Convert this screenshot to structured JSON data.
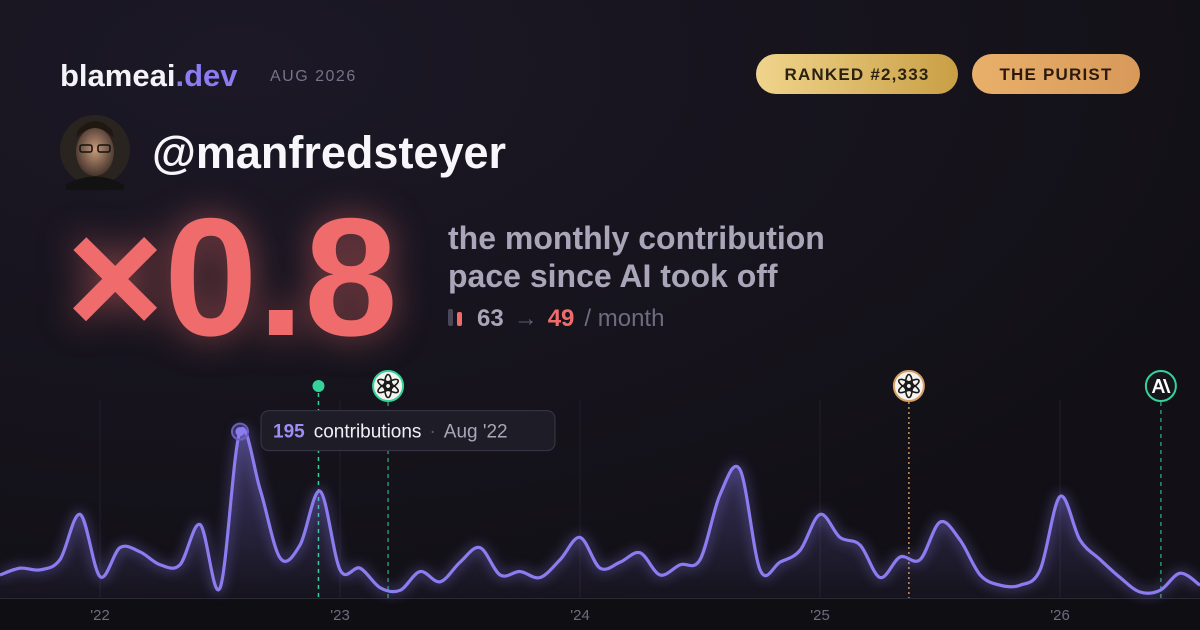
{
  "header": {
    "brand": "blameai",
    "brand_suffix": ".dev",
    "date": "AUG 2026",
    "badges": [
      "RANKED #2,333",
      "THE PURIST"
    ],
    "handle": "@manfredsteyer"
  },
  "headline": {
    "multiplier": "×0.8",
    "description": [
      "the monthly contribution",
      "pace since AI took off"
    ],
    "before": "63",
    "arrow": "→",
    "after": "49",
    "unit": "/ month"
  },
  "chart_data": {
    "type": "area",
    "x": [
      2021.583,
      2021.667,
      2021.75,
      2021.833,
      2021.917,
      2022,
      2022.083,
      2022.167,
      2022.25,
      2022.333,
      2022.417,
      2022.5,
      2022.583,
      2022.667,
      2022.75,
      2022.833,
      2022.917,
      2023,
      2023.083,
      2023.167,
      2023.25,
      2023.333,
      2023.417,
      2023.5,
      2023.583,
      2023.667,
      2023.75,
      2023.833,
      2023.917,
      2024,
      2024.083,
      2024.167,
      2024.25,
      2024.333,
      2024.417,
      2024.5,
      2024.583,
      2024.667,
      2024.75,
      2024.833,
      2024.917,
      2025,
      2025.083,
      2025.167,
      2025.25,
      2025.333,
      2025.417,
      2025.5,
      2025.583,
      2025.667,
      2025.75,
      2025.833,
      2025.917,
      2026,
      2026.083,
      2026.167,
      2026.25,
      2026.333,
      2026.417,
      2026.5,
      2026.583
    ],
    "series": [
      {
        "color": "#8b7cf0",
        "values": [
          27,
          35,
          33,
          45,
          98,
          25,
          59,
          54,
          39,
          39,
          86,
          12,
          195,
          127,
          47,
          62,
          125,
          33,
          35,
          12,
          9,
          31,
          19,
          42,
          59,
          27,
          31,
          24,
          45,
          71,
          35,
          42,
          53,
          27,
          39,
          45,
          121,
          150,
          33,
          42,
          56,
          98,
          71,
          62,
          24,
          48,
          45,
          89,
          68,
          27,
          15,
          15,
          33,
          119,
          68,
          45,
          24,
          7,
          9,
          29,
          15
        ]
      }
    ],
    "xlim": [
      2021.583,
      2026.583
    ],
    "ylim": [
      0,
      232
    ],
    "xticks": [
      {
        "value": 2022,
        "label": "'22"
      },
      {
        "value": 2023,
        "label": "'23"
      },
      {
        "value": 2024,
        "label": "'24"
      },
      {
        "value": 2025,
        "label": "'25"
      },
      {
        "value": 2026,
        "label": "'26"
      }
    ],
    "grid": true,
    "markers": [
      {
        "x": 2022.91,
        "color": "#34d399"
      },
      {
        "x": 2023.2,
        "color": "#2f8f6a"
      },
      {
        "x": 2025.37,
        "color": "#c9925a"
      },
      {
        "x": 2026.42,
        "color": "#2f8f6a"
      }
    ],
    "tooltip": {
      "value": 195,
      "label": "contributions",
      "date": "Aug '22"
    }
  }
}
